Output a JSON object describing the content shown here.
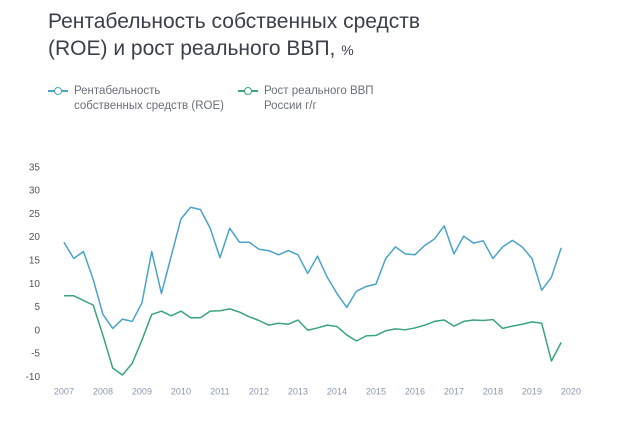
{
  "chart_data": {
    "type": "line",
    "title": "Рентабельность собственных средств (ROE) и рост реального ВВП,",
    "unit": "%",
    "x": [
      2007,
      2007.25,
      2007.5,
      2007.75,
      2008,
      2008.25,
      2008.5,
      2008.75,
      2009,
      2009.25,
      2009.5,
      2009.75,
      2010,
      2010.25,
      2010.5,
      2010.75,
      2011,
      2011.25,
      2011.5,
      2011.75,
      2012,
      2012.25,
      2012.5,
      2012.75,
      2013,
      2013.25,
      2013.5,
      2013.75,
      2014,
      2014.25,
      2014.5,
      2014.75,
      2015,
      2015.25,
      2015.5,
      2015.75,
      2016,
      2016.25,
      2016.5,
      2016.75,
      2017,
      2017.25,
      2017.5,
      2017.75,
      2018,
      2018.25,
      2018.5,
      2018.75,
      2019,
      2019.25,
      2019.5,
      2019.75
    ],
    "series": [
      {
        "name": "Рентабельность собственных средств (ROE)",
        "color": "#4aa3c9",
        "values": [
          19,
          15.5,
          17,
          11,
          3.5,
          0.5,
          2.5,
          2,
          6,
          17,
          8,
          16,
          24,
          26.5,
          26,
          22,
          15.7,
          22,
          19,
          19,
          17.5,
          17.2,
          16.3,
          17.2,
          16.3,
          12.3,
          16,
          11.5,
          8,
          5,
          8.5,
          9.5,
          10,
          15.5,
          18,
          16.5,
          16.3,
          18.3,
          19.7,
          22.5,
          16.5,
          20.3,
          18.8,
          19.3,
          15.5,
          18,
          19.4,
          18,
          15.5,
          8.7,
          11.5,
          17.8
        ]
      },
      {
        "name": "Рост реального ВВП России г/г",
        "color": "#3aa57a",
        "values": [
          7.5,
          7.5,
          6.5,
          5.5,
          -1,
          -8,
          -9.5,
          -7,
          -2,
          3.5,
          4.2,
          3.2,
          4.2,
          2.8,
          2.8,
          4.2,
          4.3,
          4.7,
          4,
          3,
          2.2,
          1.2,
          1.6,
          1.4,
          2.3,
          0.1,
          0.6,
          1.2,
          0.9,
          -0.9,
          -2.2,
          -1.1,
          -1,
          0,
          0.4,
          0.2,
          0.6,
          1.2,
          2,
          2.3,
          1,
          2,
          2.3,
          2.2,
          2.4,
          0.5,
          1,
          1.4,
          1.9,
          1.6,
          -6.5,
          -2.5
        ]
      }
    ],
    "xlim": [
      2006.95,
      2019.95
    ],
    "xticks": [
      2007,
      2008,
      2009,
      2010,
      2011,
      2012,
      2013,
      2014,
      2015,
      2016,
      2017,
      2018,
      2019,
      2020
    ],
    "ylim": [
      -11,
      36
    ],
    "yticks": [
      -10,
      -5,
      0,
      5,
      10,
      15,
      20,
      25,
      30,
      35
    ]
  }
}
